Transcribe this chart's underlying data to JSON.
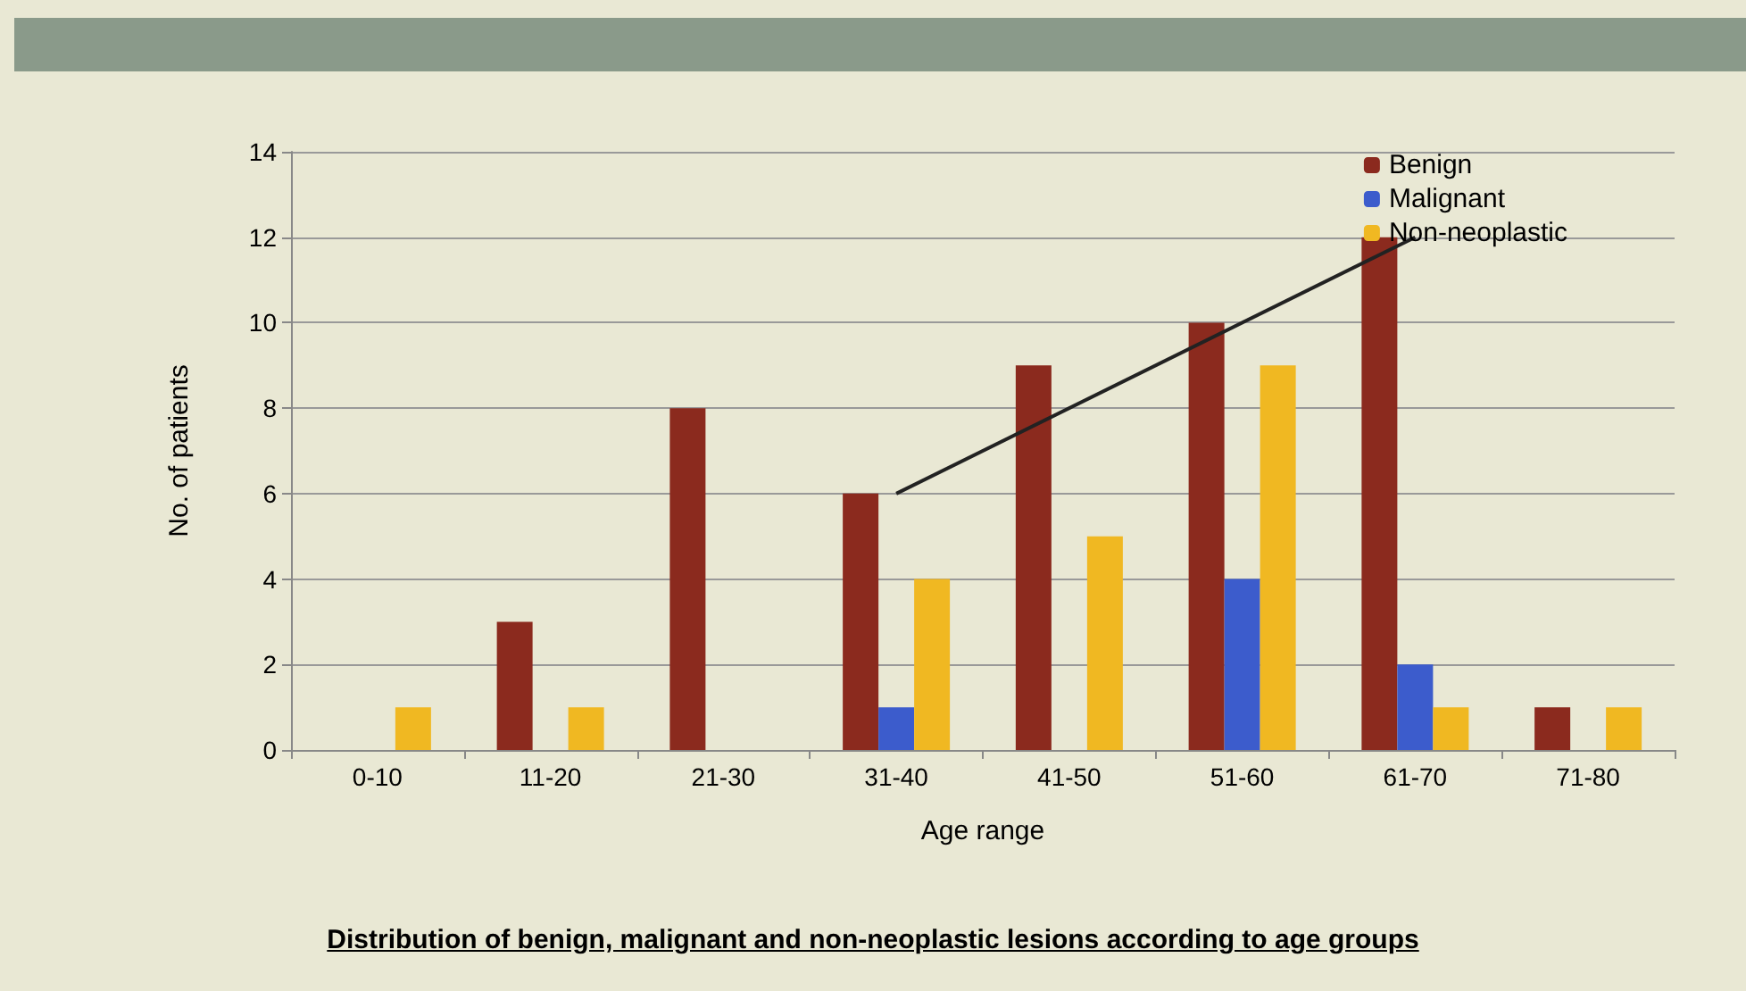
{
  "chart_data": {
    "type": "bar",
    "title": "Distribution of benign, malignant and non-neoplastic lesions according to age groups",
    "xlabel": "Age range",
    "ylabel": "No. of patients",
    "categories": [
      "0-10",
      "11-20",
      "21-30",
      "31-40",
      "41-50",
      "51-60",
      "61-70",
      "71-80"
    ],
    "series": [
      {
        "name": "Benign",
        "color": "#8b2a1e",
        "values": [
          0,
          3,
          8,
          6,
          9,
          10,
          12,
          1
        ]
      },
      {
        "name": "Malignant",
        "color": "#3c5ccc",
        "values": [
          0,
          0,
          0,
          1,
          0,
          4,
          2,
          0
        ]
      },
      {
        "name": "Non-neoplastic",
        "color": "#f0b822",
        "values": [
          1,
          1,
          0,
          4,
          5,
          9,
          1,
          1
        ]
      },
      {
        "type": "line",
        "color": "#222222",
        "x": [
          "31-40",
          "61-70"
        ],
        "values": [
          6,
          12
        ],
        "marker": "none"
      }
    ],
    "ylim": [
      0,
      14
    ],
    "yticks": [
      0,
      2,
      4,
      6,
      8,
      10,
      12,
      14
    ],
    "grid": "y",
    "legend": "top right"
  }
}
